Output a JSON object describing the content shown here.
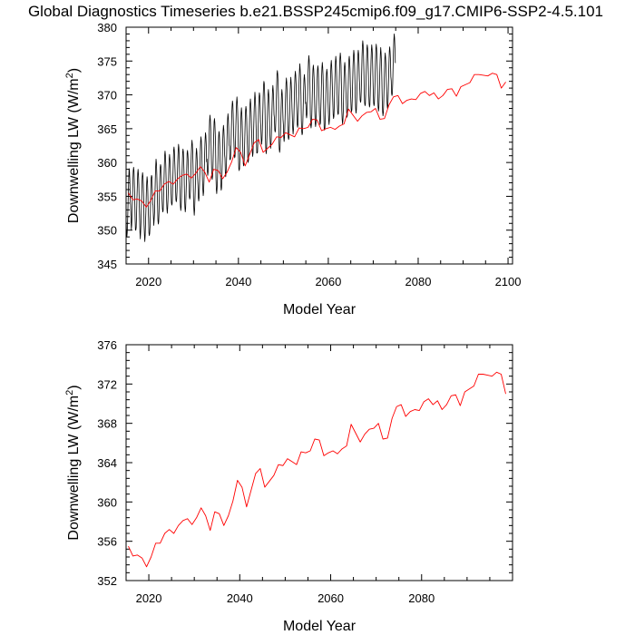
{
  "page": {
    "title": "Global Diagnostics Timeseries b.e21.BSSP245cmip6.f09_g17.CMIP6-SSP2-4.5.101"
  },
  "chart_data": [
    {
      "type": "line",
      "xlabel": "Model Year",
      "ylabel_main": "Downwelling LW (W/m",
      "ylabel_sup": "2",
      "ylabel_close": ")",
      "xlim": [
        2015,
        2101
      ],
      "ylim": [
        345,
        380
      ],
      "xticks": [
        "2020",
        "2040",
        "2060",
        "2080",
        "2100"
      ],
      "yticks": [
        "345",
        "350",
        "355",
        "360",
        "365",
        "370",
        "375",
        "380"
      ],
      "grid": false,
      "series": [
        {
          "color": "#000000",
          "monthly": true,
          "x_start": 2015,
          "values": [
            351.9,
            350.0,
            349.0,
            349.6,
            351.2,
            353.4,
            355.6,
            357.6,
            359.1,
            358.7,
            357.3,
            354.8,
            353.7,
            351.6,
            350.1,
            350.7,
            352.4,
            354.7,
            357.0,
            358.7,
            359.3,
            358.8,
            357.3,
            355.0,
            351.9,
            350.0,
            350.0,
            350.4,
            352.2,
            354.7,
            356.6,
            358.4,
            359.0,
            358.2,
            356.8,
            354.4,
            351.8,
            349.7,
            348.7,
            349.9,
            351.6,
            353.7,
            356.1,
            357.9,
            358.5,
            358.0,
            356.7,
            354.4,
            350.9,
            349.3,
            348.3,
            349.2,
            351.2,
            353.0,
            355.4,
            357.0,
            357.9,
            357.3,
            355.8,
            353.2,
            351.7,
            349.6,
            349.2,
            349.5,
            350.6,
            353.1,
            355.8,
            357.7,
            358.1,
            357.9,
            356.1,
            353.9,
            353.7,
            351.9,
            350.7,
            351.6,
            352.6,
            355.0,
            357.5,
            359.4,
            360.5,
            359.9,
            358.3,
            356.1,
            353.8,
            351.5,
            350.9,
            351.2,
            352.8,
            355.2,
            357.6,
            359.2,
            359.7,
            359.4,
            358.1,
            355.9,
            354.6,
            353.2,
            352.7,
            352.9,
            354.6,
            356.9,
            359.1,
            361.0,
            361.7,
            361.1,
            359.7,
            357.2,
            354.7,
            353.2,
            352.5,
            353.3,
            354.7,
            356.8,
            359.1,
            360.5,
            361.2,
            360.5,
            359.1,
            357.2,
            355.8,
            354.1,
            353.7,
            353.9,
            355.4,
            357.8,
            360.0,
            361.8,
            362.3,
            361.7,
            360.2,
            358.4,
            356.2,
            354.5,
            354.2,
            354.6,
            355.8,
            358.1,
            360.3,
            361.7,
            362.7,
            362.2,
            360.5,
            358.1,
            355.7,
            353.6,
            352.9,
            353.4,
            355.0,
            357.2,
            359.6,
            361.4,
            362.0,
            361.6,
            360.0,
            358.0,
            355.0,
            353.4,
            352.7,
            353.2,
            355.1,
            357.0,
            359.3,
            361.4,
            361.8,
            361.2,
            360.1,
            357.8,
            356.9,
            354.9,
            354.6,
            354.9,
            356.0,
            358.6,
            361.0,
            362.5,
            363.3,
            362.7,
            361.4,
            358.9,
            354.7,
            353.1,
            352.2,
            353.0,
            354.7,
            356.6,
            359.2,
            361.2,
            362.1,
            361.5,
            360.1,
            357.7,
            356.6,
            354.7,
            354.3,
            354.9,
            356.6,
            358.7,
            361.4,
            363.1,
            363.8,
            363.2,
            361.6,
            359.5,
            357.4,
            356.0,
            355.1,
            355.6,
            357.3,
            359.2,
            361.7,
            363.4,
            364.4,
            364.0,
            362.7,
            360.1,
            360.5,
            358.7,
            358.1,
            358.6,
            359.8,
            362.1,
            364.5,
            366.2,
            367.0,
            366.4,
            365.0,
            362.8,
            359.8,
            357.9,
            357.5,
            357.9,
            359.1,
            361.6,
            364.0,
            366.0,
            366.5,
            365.9,
            364.4,
            362.4,
            357.7,
            356.0,
            355.4,
            356.2,
            357.4,
            359.7,
            362.0,
            363.7,
            364.6,
            364.3,
            362.8,
            360.3,
            358.3,
            356.7,
            355.9,
            356.2,
            358.0,
            360.5,
            362.9,
            364.7,
            365.5,
            364.9,
            363.6,
            361.2,
            360.6,
            358.5,
            357.9,
            358.5,
            359.8,
            362.2,
            364.7,
            366.4,
            367.2,
            366.6,
            365.0,
            362.6,
            362.4,
            360.5,
            360.4,
            360.6,
            362.1,
            364.6,
            366.8,
            368.3,
            369.1,
            368.7,
            367.2,
            364.6,
            362.8,
            361.1,
            360.7,
            360.9,
            362.6,
            365.1,
            367.3,
            368.9,
            369.7,
            368.9,
            367.5,
            365.3,
            360.9,
            359.1,
            358.8,
            359.1,
            360.6,
            363.0,
            365.3,
            367.3,
            368.1,
            367.3,
            366.0,
            363.6,
            361.5,
            359.8,
            359.5,
            359.9,
            361.5,
            363.6,
            366.0,
            367.7,
            368.3,
            367.8,
            366.5,
            364.1,
            362.4,
            360.6,
            360.0,
            360.4,
            361.8,
            364.4,
            366.7,
            368.7,
            369.4,
            368.6,
            367.4,
            365.1,
            363.3,
            361.6,
            360.9,
            361.4,
            363.3,
            365.6,
            367.8,
            369.3,
            370.4,
            369.6,
            368.2,
            365.6,
            363.5,
            361.4,
            361.4,
            361.5,
            363.2,
            365.7,
            368.1,
            369.6,
            370.3,
            369.9,
            368.3,
            366.0,
            365.1,
            363.3,
            362.7,
            363.4,
            365.0,
            367.2,
            369.6,
            371.3,
            372.0,
            371.7,
            370.2,
            367.8,
            363.8,
            362.0,
            361.3,
            361.7,
            363.6,
            366.0,
            368.2,
            370.0,
            370.8,
            370.1,
            368.7,
            366.3,
            364.4,
            362.8,
            362.1,
            362.7,
            364.1,
            366.6,
            368.7,
            370.6,
            371.4,
            370.7,
            369.3,
            367.1,
            366.6,
            364.8,
            364.5,
            364.8,
            366.5,
            368.6,
            371.3,
            373.1,
            373.6,
            373.0,
            371.6,
            369.3,
            363.7,
            362.0,
            361.5,
            362.0,
            363.4,
            365.8,
            368.1,
            369.9,
            370.8,
            370.2,
            368.6,
            366.4,
            365.6,
            363.7,
            363.1,
            363.8,
            365.4,
            367.6,
            370.1,
            371.6,
            372.5,
            371.9,
            370.4,
            368.1,
            365.5,
            363.7,
            363.4,
            363.7,
            365.4,
            367.5,
            369.9,
            371.8,
            372.6,
            371.7,
            370.4,
            368.1,
            366.6,
            365.0,
            364.2,
            364.9,
            366.3,
            368.8,
            371.3,
            372.8,
            373.5,
            372.9,
            371.5,
            369.1,
            367.6,
            365.6,
            365.2,
            365.6,
            367.4,
            369.6,
            372.0,
            373.6,
            374.6,
            373.7,
            372.4,
            370.0,
            366.2,
            364.6,
            364.1,
            364.3,
            366.0,
            368.2,
            370.5,
            372.3,
            373.0,
            372.4,
            371.2,
            368.7,
            368.9,
            367.1,
            366.6,
            367.1,
            368.7,
            370.8,
            373.3,
            374.9,
            375.8,
            375.2,
            373.8,
            371.5,
            367.2,
            365.5,
            365.1,
            365.6,
            367.1,
            369.4,
            372.0,
            373.8,
            374.4,
            373.8,
            372.5,
            370.1,
            367.5,
            365.8,
            365.3,
            365.8,
            367.2,
            369.4,
            371.9,
            373.6,
            374.3,
            373.9,
            372.4,
            369.9,
            367.7,
            366.3,
            365.6,
            365.8,
            367.7,
            369.9,
            372.3,
            374.0,
            374.8,
            374.1,
            372.8,
            370.2,
            367.0,
            365.0,
            364.8,
            365.1,
            366.6,
            369.1,
            371.5,
            373.1,
            373.8,
            373.3,
            372.0,
            369.6,
            367.9,
            366.3,
            365.6,
            366.3,
            367.6,
            370.2,
            372.5,
            374.4,
            375.1,
            374.3,
            372.9,
            370.8,
            368.9,
            367.1,
            366.5,
            366.8,
            368.4,
            370.9,
            373.1,
            374.9,
            375.7,
            375.0,
            373.5,
            371.3,
            369.1,
            367.5,
            367.1,
            367.2,
            369.0,
            371.3,
            373.8,
            375.4,
            376.2,
            375.6,
            374.4,
            371.6,
            367.8,
            366.4,
            365.7,
            366.2,
            367.6,
            370.1,
            372.3,
            374.2,
            374.8,
            374.1,
            372.8,
            370.6,
            369.1,
            367.4,
            366.7,
            367.0,
            368.4,
            370.8,
            373.3,
            375.2,
            375.7,
            375.0,
            373.8,
            371.2,
            369.5,
            367.9,
            367.5,
            367.8,
            369.5,
            371.9,
            374.3,
            375.7,
            376.6,
            376.0,
            374.6,
            372.4,
            369.6,
            368.0,
            367.3,
            367.8,
            369.4,
            371.7,
            374.1,
            375.9,
            376.6,
            376.1,
            374.6,
            372.3,
            371.1,
            369.3,
            368.9,
            369.1,
            370.6,
            373.0,
            375.6,
            377.2,
            378.0,
            377.4,
            375.9,
            373.6,
            370.5,
            368.8,
            368.4,
            368.6,
            370.4,
            372.7,
            374.9,
            376.8,
            377.4,
            376.9,
            375.4,
            373.2,
            370.3,
            368.7,
            368.2,
            368.5,
            370.1,
            372.4,
            374.9,
            376.6,
            377.4,
            376.8,
            375.5,
            373.0,
            370.6,
            368.8,
            368.4,
            368.7,
            370.3,
            372.6,
            375.1,
            376.8,
            377.5,
            376.9,
            375.6,
            373.3,
            369.9,
            368.2,
            367.6,
            368.1,
            369.7,
            372.0,
            374.3,
            376.0,
            377.0,
            376.2,
            374.8,
            372.3,
            369.2,
            367.5,
            366.9,
            367.4,
            368.9,
            371.2,
            373.7,
            375.4,
            376.2,
            375.5,
            374.2,
            371.9,
            370.3,
            368.6,
            368.0,
            368.2,
            369.9,
            372.5,
            374.7,
            376.5,
            377.1,
            376.4,
            375.2,
            372.7,
            372.1,
            370.2,
            369.9,
            370.2,
            371.7,
            374.2,
            376.6,
            378.1,
            379.0,
            378.4,
            376.9,
            374.7
          ]
        },
        {
          "color": "#ff0000",
          "x_start": 2015,
          "values": [
            355.5,
            354.5,
            354.6,
            354.3,
            353.4,
            354.4,
            355.8,
            355.8,
            356.8,
            357.2,
            356.8,
            357.6,
            358.1,
            358.3,
            357.7,
            358.4,
            359.4,
            358.6,
            357.1,
            359.0,
            358.8,
            357.6,
            358.6,
            360.1,
            362.2,
            361.5,
            359.5,
            361.2,
            362.9,
            363.4,
            361.5,
            362.1,
            362.7,
            363.8,
            363.7,
            364.4,
            364.1,
            363.8,
            365.1,
            365.0,
            365.2,
            366.4,
            366.3,
            364.7,
            365.0,
            365.2,
            364.9,
            365.4,
            365.7,
            367.9,
            367.0,
            366.1,
            366.9,
            367.4,
            367.5,
            368.0,
            366.4,
            366.5,
            368.5,
            369.7,
            369.9,
            368.7,
            369.2,
            369.4,
            369.3,
            370.2,
            370.5,
            369.9,
            370.3,
            369.4,
            369.9,
            370.8,
            370.9,
            369.8,
            371.2,
            371.5,
            371.8,
            373.0,
            373.0,
            372.9,
            372.8,
            373.2,
            373.0,
            371.0,
            371.9
          ]
        }
      ]
    },
    {
      "type": "line",
      "xlabel": "Model Year",
      "ylabel_main": "Downwelling LW (W/m",
      "ylabel_sup": "2",
      "ylabel_close": ")",
      "xlim": [
        2015,
        2100
      ],
      "ylim": [
        352,
        376
      ],
      "xticks": [
        "2020",
        "2040",
        "2060",
        "2080"
      ],
      "yticks": [
        "352",
        "356",
        "360",
        "364",
        "368",
        "372",
        "376"
      ],
      "grid": false,
      "series": [
        {
          "color": "#ff0000",
          "x_start": 2015,
          "values": [
            355.5,
            354.5,
            354.6,
            354.3,
            353.4,
            354.4,
            355.8,
            355.8,
            356.8,
            357.2,
            356.8,
            357.6,
            358.1,
            358.3,
            357.7,
            358.4,
            359.4,
            358.6,
            357.1,
            359.0,
            358.8,
            357.6,
            358.6,
            360.1,
            362.2,
            361.5,
            359.5,
            361.2,
            362.9,
            363.4,
            361.5,
            362.1,
            362.7,
            363.8,
            363.7,
            364.4,
            364.1,
            363.8,
            365.1,
            365.0,
            365.2,
            366.4,
            366.3,
            364.7,
            365.0,
            365.2,
            364.9,
            365.4,
            365.7,
            367.9,
            367.0,
            366.1,
            366.9,
            367.4,
            367.5,
            368.0,
            366.4,
            366.5,
            368.5,
            369.7,
            369.9,
            368.7,
            369.2,
            369.4,
            369.3,
            370.2,
            370.5,
            369.9,
            370.3,
            369.4,
            369.9,
            370.8,
            370.9,
            369.8,
            371.2,
            371.5,
            371.8,
            373.0,
            373.0,
            372.9,
            372.8,
            373.2,
            373.0,
            371.0
          ]
        }
      ]
    }
  ]
}
